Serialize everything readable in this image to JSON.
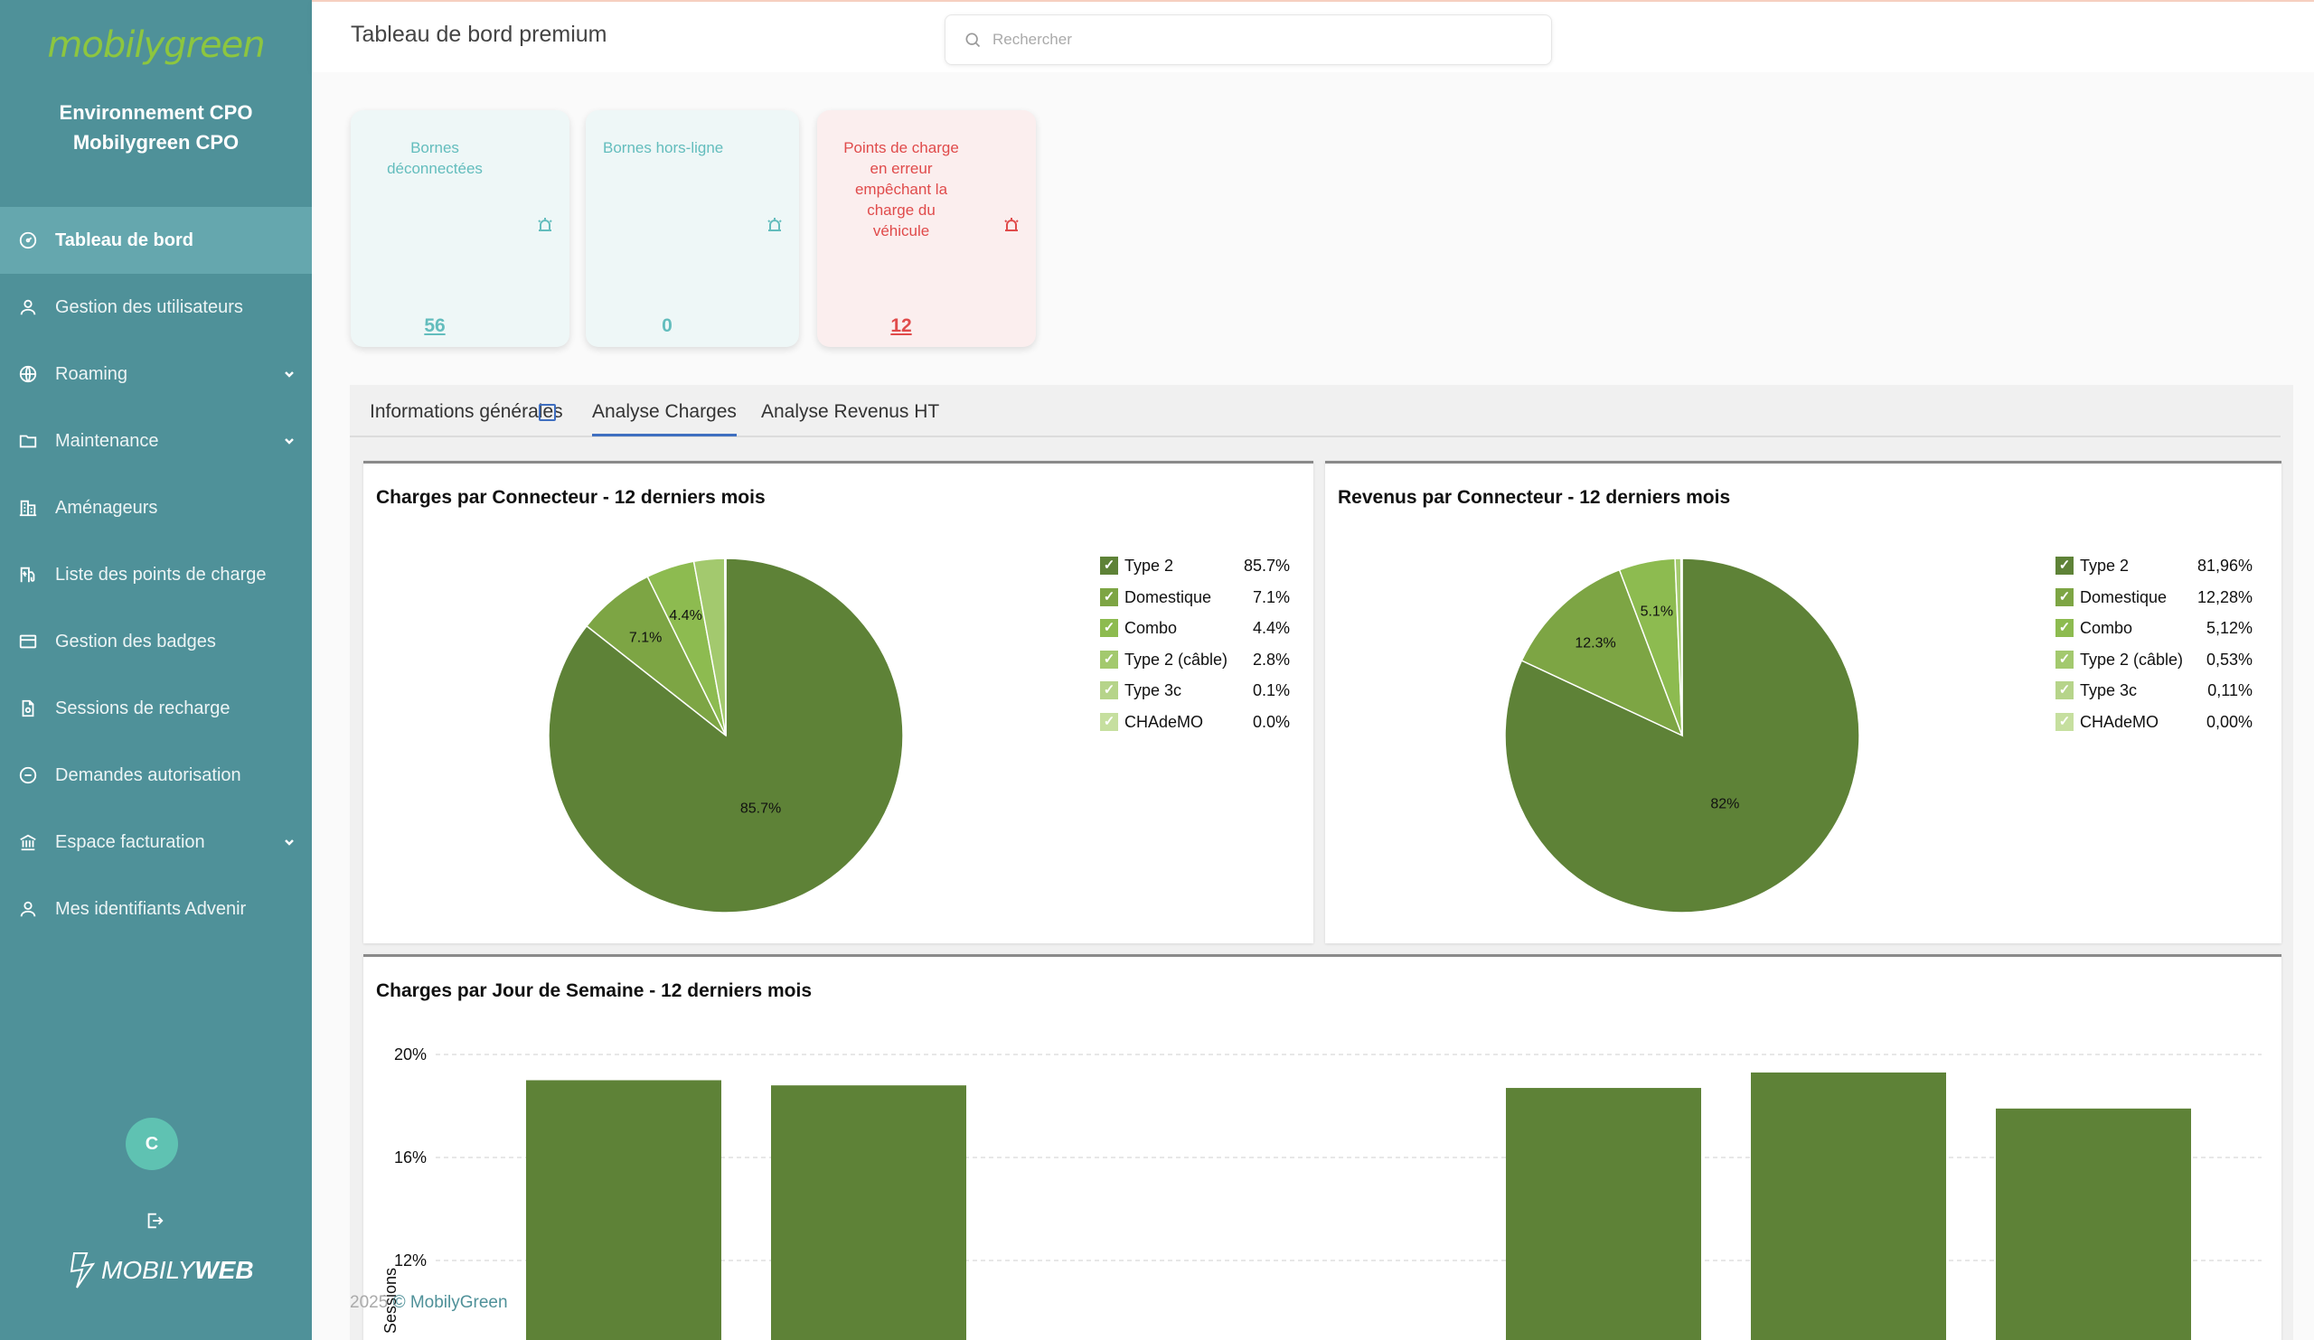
{
  "sidebar": {
    "logo_text": "mobilygreen",
    "env_line1": "Environnement CPO",
    "env_line2": "Mobilygreen CPO",
    "items": [
      {
        "label": "Tableau de bord",
        "icon": "dashboard-icon",
        "active": true,
        "has_chevron": false
      },
      {
        "label": "Gestion des utilisateurs",
        "icon": "user-icon",
        "active": false,
        "has_chevron": false
      },
      {
        "label": "Roaming",
        "icon": "globe-icon",
        "active": false,
        "has_chevron": true
      },
      {
        "label": "Maintenance",
        "icon": "folder-icon",
        "active": false,
        "has_chevron": true
      },
      {
        "label": "Aménageurs",
        "icon": "building-icon",
        "active": false,
        "has_chevron": false
      },
      {
        "label": "Liste des points de charge",
        "icon": "charger-icon",
        "active": false,
        "has_chevron": false
      },
      {
        "label": "Gestion des badges",
        "icon": "card-icon",
        "active": false,
        "has_chevron": false
      },
      {
        "label": "Sessions de recharge",
        "icon": "document-icon",
        "active": false,
        "has_chevron": false
      },
      {
        "label": "Demandes autorisation",
        "icon": "minus-circle-icon",
        "active": false,
        "has_chevron": false
      },
      {
        "label": "Espace facturation",
        "icon": "bank-icon",
        "active": false,
        "has_chevron": true
      },
      {
        "label": "Mes identifiants Advenir",
        "icon": "user-icon",
        "active": false,
        "has_chevron": false
      }
    ],
    "avatar_initial": "C",
    "brand_light": "MOBILY",
    "brand_bold": "WEB"
  },
  "header": {
    "title": "Tableau de bord premium",
    "search_placeholder": "Rechercher"
  },
  "cards": [
    {
      "label_lines": [
        "Bornes",
        "déconnectées"
      ],
      "value": "56",
      "status": "ok",
      "icon": "alarm-icon"
    },
    {
      "label_lines": [
        "Bornes hors-ligne"
      ],
      "value": "0",
      "status": "ok",
      "icon": "alarm-icon"
    },
    {
      "label_lines": [
        "Points de charge",
        "en erreur",
        "empêchant la",
        "charge du",
        "véhicule"
      ],
      "value": "12",
      "status": "err",
      "icon": "alarm-icon"
    }
  ],
  "tabs": [
    {
      "label": "Informations générales",
      "active": false
    },
    {
      "label": "Analyse Charges",
      "active": true
    },
    {
      "label": "Analyse Revenus HT",
      "active": false
    }
  ],
  "colors": {
    "sidebar": "#4f9199",
    "pie": [
      "#5e8237",
      "#7da544",
      "#8dbb50",
      "#a3c96e",
      "#b6d48a",
      "#c6df9f"
    ],
    "bar": "#5e8237"
  },
  "chart_data": [
    {
      "type": "pie",
      "title": "Charges par Connecteur - 12 derniers mois",
      "labels": [
        "Type 2",
        "Domestique",
        "Combo",
        "Type 2 (câble)",
        "Type 3c",
        "CHAdeMO"
      ],
      "values": [
        85.7,
        7.1,
        4.4,
        2.8,
        0.1,
        0.0
      ],
      "legend_values": [
        "85.7%",
        "7.1%",
        "4.4%",
        "2.8%",
        "0.1%",
        "0.0%"
      ],
      "slice_labels": [
        "85.7%",
        "7.1%",
        "4.4%",
        "",
        "",
        ""
      ],
      "legend": "right"
    },
    {
      "type": "pie",
      "title": "Revenus par Connecteur - 12 derniers mois",
      "labels": [
        "Type 2",
        "Domestique",
        "Combo",
        "Type 2 (câble)",
        "Type 3c",
        "CHAdeMO"
      ],
      "values": [
        81.96,
        12.28,
        5.12,
        0.53,
        0.11,
        0.0
      ],
      "legend_values": [
        "81,96%",
        "12,28%",
        "5,12%",
        "0,53%",
        "0,11%",
        "0,00%"
      ],
      "slice_labels": [
        "82%",
        "12.3%",
        "5.1%",
        "",
        "",
        ""
      ],
      "legend": "right"
    },
    {
      "type": "bar",
      "title": "Charges par Jour de Semaine - 12 derniers mois",
      "ylabel": "Sessions",
      "y_ticks": [
        "20%",
        "16%",
        "12%"
      ],
      "y_tick_values": [
        20,
        16,
        12
      ],
      "values": [
        19.0,
        18.8,
        null,
        null,
        18.7,
        19.3,
        17.9
      ],
      "grid": true
    }
  ],
  "footer": {
    "year": "2025",
    "copy": "© MobilyGreen"
  }
}
